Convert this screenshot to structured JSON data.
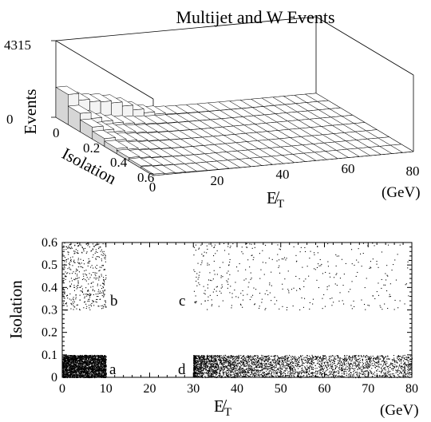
{
  "chart_data": [
    {
      "type": "surface3d",
      "title": "Multijet and W Events",
      "zlabel": "Events",
      "z_ticks": [
        "4315",
        "0"
      ],
      "zlim": [
        0,
        4315
      ],
      "ylabel": "Isolation",
      "y_ticks": [
        "0",
        "0.2",
        "0.4",
        "0.6"
      ],
      "ylim": [
        0,
        0.6
      ],
      "xlabel": "E̸T",
      "x_unit": "(GeV)",
      "x_ticks": [
        "0",
        "20",
        "40",
        "60",
        "80"
      ],
      "xlim": [
        0,
        80
      ],
      "grid": true,
      "peak_value": 4315,
      "peak_location": {
        "met_gev": 5,
        "isolation": 0.0
      },
      "shape": "large peak at low E̸T and low isolation falling off with both E̸T and isolation; secondary ridge at low isolation extending to higher E̸T"
    },
    {
      "type": "scatter",
      "xlabel": "E̸T",
      "x_unit": "(GeV)",
      "ylabel": "Isolation",
      "xlim": [
        0,
        80
      ],
      "ylim": [
        0,
        0.6
      ],
      "x_ticks": [
        "0",
        "10",
        "20",
        "30",
        "40",
        "50",
        "60",
        "70",
        "80"
      ],
      "y_ticks": [
        "0",
        "0.1",
        "0.2",
        "0.3",
        "0.4",
        "0.5",
        "0.6"
      ],
      "regions": [
        {
          "label": "a",
          "x": [
            0,
            10
          ],
          "y": [
            0,
            0.1
          ],
          "density": "very high"
        },
        {
          "label": "b",
          "x": [
            0,
            10
          ],
          "y": [
            0.3,
            0.6
          ],
          "density": "medium"
        },
        {
          "label": "c",
          "x": [
            30,
            80
          ],
          "y": [
            0.3,
            0.6
          ],
          "density": "low"
        },
        {
          "label": "d",
          "x": [
            30,
            80
          ],
          "y": [
            0,
            0.1
          ],
          "density": "high"
        }
      ]
    }
  ]
}
